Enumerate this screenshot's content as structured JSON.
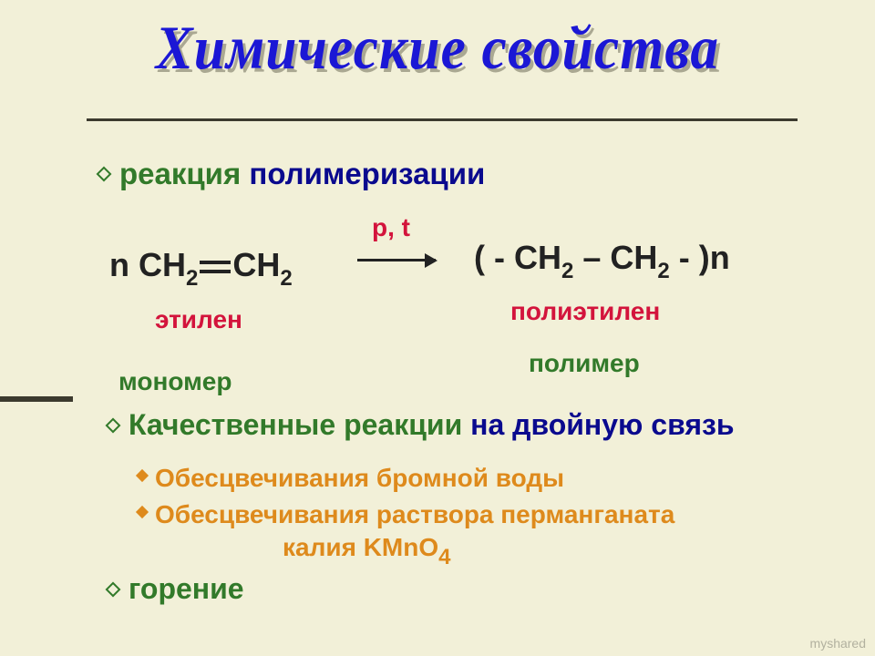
{
  "colors": {
    "background": "#f2f0d8",
    "title": "#1b17d5",
    "title_shadow": "#aaa892",
    "rule": "#3c3a2e",
    "green": "#327a2a",
    "navy": "#0a0a8e",
    "red": "#d3143c",
    "orange": "#de8a1c",
    "formula": "#222222"
  },
  "fonts": {
    "title_family": "Times New Roman",
    "body_family": "Arial",
    "title_size_pt": 52,
    "bullet_size_pt": 33,
    "formula_size_pt": 36,
    "label_size_pt": 28,
    "sub_size_pt": 24
  },
  "title": "Химические свойства",
  "bullets": {
    "polymerization": {
      "hl": "реакция",
      "rest": " полимеризации"
    },
    "qualitative": {
      "hl": "Качественные реакции",
      "rest": " на двойную связь"
    },
    "combustion": "горение"
  },
  "reaction": {
    "left": {
      "n": "n ",
      "c1": "CH",
      "s1": "2",
      "c2": "CH",
      "s2": "2"
    },
    "conditions": "p, t",
    "right": {
      "open": "( - CH",
      "s1": "2",
      "mid": " – CH",
      "s2": "2",
      "close": " - )n"
    },
    "labels": {
      "ethylene": "этилен",
      "polyethylene": "полиэтилен",
      "monomer": "мономер",
      "polymer": "полимер"
    }
  },
  "sub_bullets": {
    "bromine": "Обесцвечивания бромной воды",
    "permanganate_l1": "Обесцвечивания раствора перманганата",
    "permanganate_l2_pre": "калия KMnO",
    "permanganate_l2_sub": "4"
  },
  "watermark": "myshared"
}
